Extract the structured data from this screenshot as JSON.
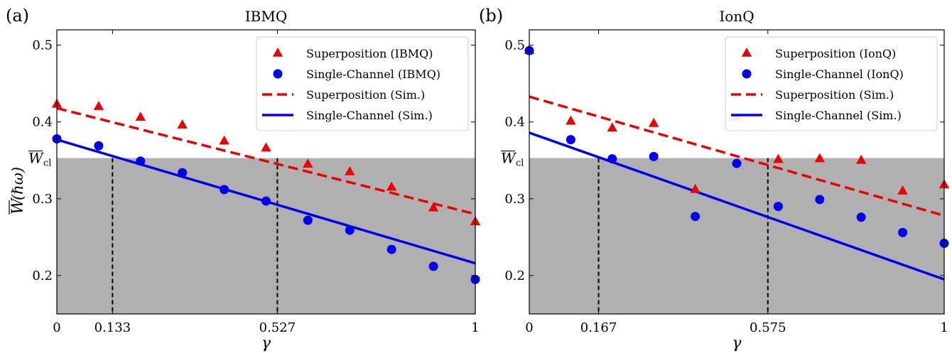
{
  "chart_data": [
    {
      "type": "scatter",
      "panel_label": "(a)",
      "title": "IBMQ",
      "xlabel": "γ",
      "ylabel_main": "W",
      "ylabel_unit": " (ℏω)",
      "xlim": [
        0,
        1
      ],
      "ylim": [
        0.15,
        0.52
      ],
      "y_scale": "linear",
      "shaded_region_below": 0.353,
      "threshold_label_main": "W",
      "threshold_label_sub": "cl",
      "vlines": [
        0.133,
        0.527
      ],
      "xticks": [
        {
          "value": 0,
          "label": "0"
        },
        {
          "value": 0.133,
          "label": "0.133"
        },
        {
          "value": 0.527,
          "label": "0.527"
        },
        {
          "value": 1,
          "label": "1"
        }
      ],
      "yticks": [
        {
          "value": 0.2,
          "label": "0.2"
        },
        {
          "value": 0.3,
          "label": "0.3"
        },
        {
          "value": 0.4,
          "label": "0.4"
        },
        {
          "value": 0.5,
          "label": "0.5"
        }
      ],
      "series": [
        {
          "name": "Superposition (IBMQ)",
          "kind": "marker",
          "marker": "triangle",
          "color": "#ee0000",
          "x": [
            0,
            0.1,
            0.2,
            0.3,
            0.4,
            0.5,
            0.6,
            0.7,
            0.8,
            0.9,
            1.0
          ],
          "y": [
            0.423,
            0.42,
            0.406,
            0.396,
            0.375,
            0.366,
            0.345,
            0.335,
            0.315,
            0.288,
            0.27
          ]
        },
        {
          "name": "Single-Channel (IBMQ)",
          "kind": "marker",
          "marker": "circle",
          "color": "#0000ee",
          "x": [
            0,
            0.1,
            0.2,
            0.3,
            0.4,
            0.5,
            0.6,
            0.7,
            0.8,
            0.9,
            1.0
          ],
          "y": [
            0.378,
            0.369,
            0.349,
            0.334,
            0.312,
            0.297,
            0.272,
            0.259,
            0.234,
            0.212,
            0.195
          ]
        },
        {
          "name": "Superposition (Sim.)",
          "kind": "line",
          "dash": "dashed",
          "color": "#ee0000",
          "x": [
            0,
            1
          ],
          "y": [
            0.418,
            0.28
          ]
        },
        {
          "name": "Single-Channel (Sim.)",
          "kind": "line",
          "dash": "solid",
          "color": "#0000ee",
          "x": [
            0,
            1
          ],
          "y": [
            0.377,
            0.216
          ]
        }
      ]
    },
    {
      "type": "scatter",
      "panel_label": "(b)",
      "title": "IonQ",
      "xlabel": "γ",
      "xlim": [
        0,
        1
      ],
      "ylim": [
        0.15,
        0.52
      ],
      "y_scale": "linear",
      "shaded_region_below": 0.353,
      "threshold_label_main": "W",
      "threshold_label_sub": "cl",
      "vlines": [
        0.167,
        0.575
      ],
      "xticks": [
        {
          "value": 0,
          "label": "0"
        },
        {
          "value": 0.167,
          "label": "0.167"
        },
        {
          "value": 0.575,
          "label": "0.575"
        },
        {
          "value": 1,
          "label": "1"
        }
      ],
      "yticks": [
        {
          "value": 0.2,
          "label": "0.2"
        },
        {
          "value": 0.3,
          "label": "0.3"
        },
        {
          "value": 0.4,
          "label": "0.4"
        },
        {
          "value": 0.5,
          "label": "0.5"
        }
      ],
      "series": [
        {
          "name": "Superposition (IonQ)",
          "kind": "marker",
          "marker": "triangle",
          "color": "#ee0000",
          "x": [
            0,
            0.1,
            0.2,
            0.3,
            0.4,
            0.5,
            0.6,
            0.7,
            0.8,
            0.9,
            1.0
          ],
          "y": [
            0.493,
            0.401,
            0.392,
            0.398,
            0.312,
            0.406,
            0.351,
            0.352,
            0.35,
            0.31,
            0.318
          ]
        },
        {
          "name": "Single-Channel (IonQ)",
          "kind": "marker",
          "marker": "circle",
          "color": "#0000ee",
          "x": [
            0,
            0.1,
            0.2,
            0.3,
            0.4,
            0.5,
            0.6,
            0.7,
            0.8,
            0.9,
            1.0
          ],
          "y": [
            0.493,
            0.377,
            0.352,
            0.355,
            0.277,
            0.346,
            0.29,
            0.299,
            0.276,
            0.256,
            0.242
          ]
        },
        {
          "name": "Superposition (Sim.)",
          "kind": "line",
          "dash": "dashed",
          "color": "#ee0000",
          "x": [
            0,
            1
          ],
          "y": [
            0.433,
            0.278
          ]
        },
        {
          "name": "Single-Channel (Sim.)",
          "kind": "line",
          "dash": "solid",
          "color": "#0000ee",
          "x": [
            0,
            1
          ],
          "y": [
            0.386,
            0.195
          ]
        }
      ]
    }
  ]
}
